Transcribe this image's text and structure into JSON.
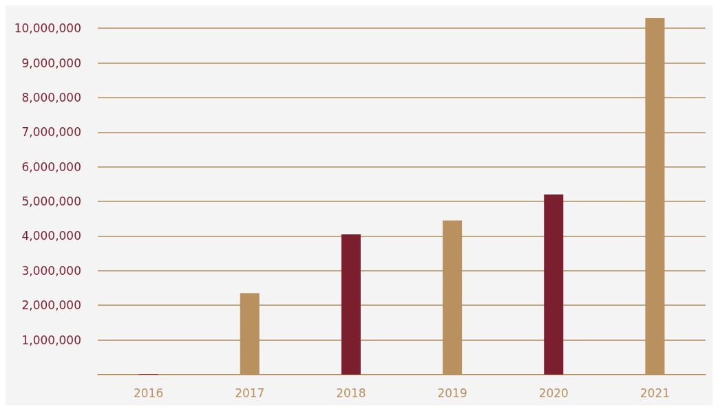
{
  "chart_data": {
    "type": "bar",
    "categories": [
      "2016",
      "2017",
      "2018",
      "2019",
      "2020",
      "2021"
    ],
    "values": [
      20000,
      2350000,
      4050000,
      4450000,
      5200000,
      10300000
    ],
    "colors": [
      "#7b1f2e",
      "#b8915f",
      "#7b1f2e",
      "#b8915f",
      "#7b1f2e",
      "#b8915f"
    ],
    "ylim": [
      0,
      10300000
    ],
    "yticks": [
      {
        "value": 0,
        "label": null
      },
      {
        "value": 1000000,
        "label": "1,000,000"
      },
      {
        "value": 2000000,
        "label": "2,000,000"
      },
      {
        "value": 3000000,
        "label": "3,000,000"
      },
      {
        "value": 4000000,
        "label": "4,000,000"
      },
      {
        "value": 5000000,
        "label": "5,000,000"
      },
      {
        "value": 6000000,
        "label": "6,000,000"
      },
      {
        "value": 7000000,
        "label": "7,000,000"
      },
      {
        "value": 8000000,
        "label": "8,000,000"
      },
      {
        "value": 9000000,
        "label": "9,000,000"
      },
      {
        "value": 10000000,
        "label": "10,000,000"
      }
    ],
    "grid": "y"
  }
}
